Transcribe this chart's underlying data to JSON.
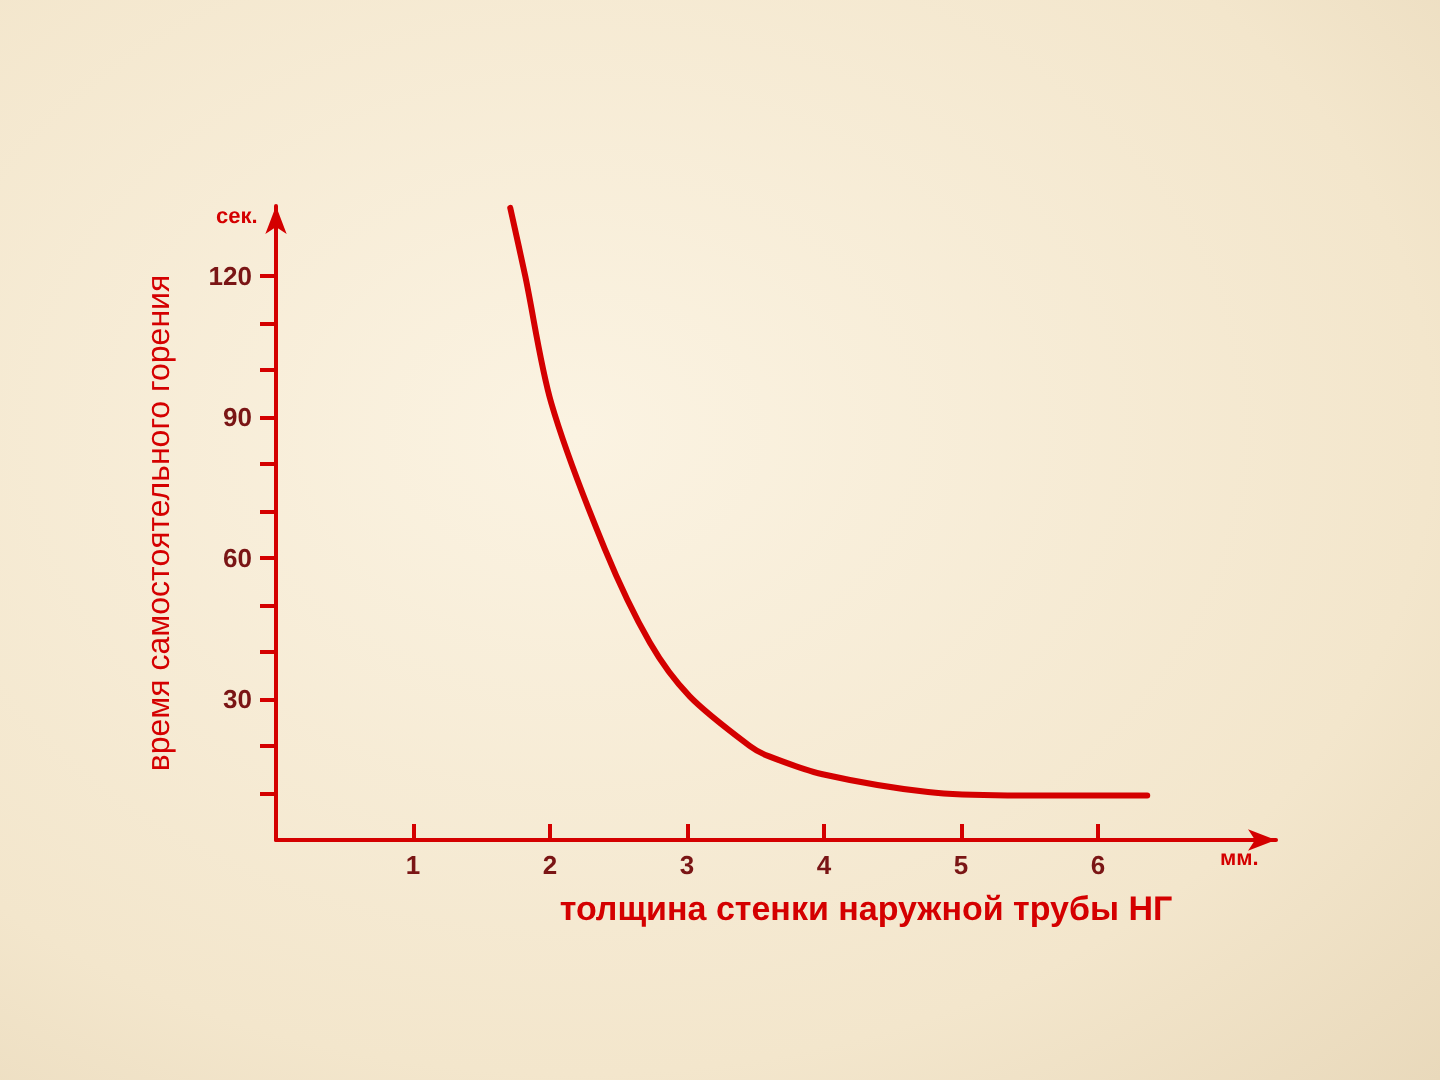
{
  "chart_data": {
    "type": "line",
    "xlabel": "толщина стенки наружной трубы НГ",
    "ylabel": "время самостоятельного горения",
    "annotations": [
      "сек.",
      "мм."
    ],
    "x": [
      1.71,
      1.82,
      2.01,
      2.4,
      2.73,
      3.02,
      3.46,
      3.6,
      3.99,
      4.76,
      5.34,
      6.36
    ],
    "series": [
      {
        "color": "#d40000",
        "values": [
          134.6,
          120,
          93,
          62,
          42,
          30.6,
          20,
          17.8,
          14,
          10.2,
          9.5,
          9.5
        ]
      }
    ],
    "xlim": [
      0,
      7.3
    ],
    "xticks": [
      1,
      2,
      3,
      4,
      5,
      6
    ],
    "ylim": [
      0,
      135
    ],
    "yticks": [
      {
        "value": 10,
        "label": null
      },
      {
        "value": 20,
        "label": null
      },
      30,
      {
        "value": 40,
        "label": null
      },
      {
        "value": 50,
        "label": null
      },
      60,
      {
        "value": 70,
        "label": null
      },
      {
        "value": 80,
        "label": null
      },
      90,
      {
        "value": 100,
        "label": null
      },
      {
        "value": 110,
        "label": null
      },
      120
    ],
    "grid": false,
    "marker": "none",
    "line_style": "solid"
  }
}
